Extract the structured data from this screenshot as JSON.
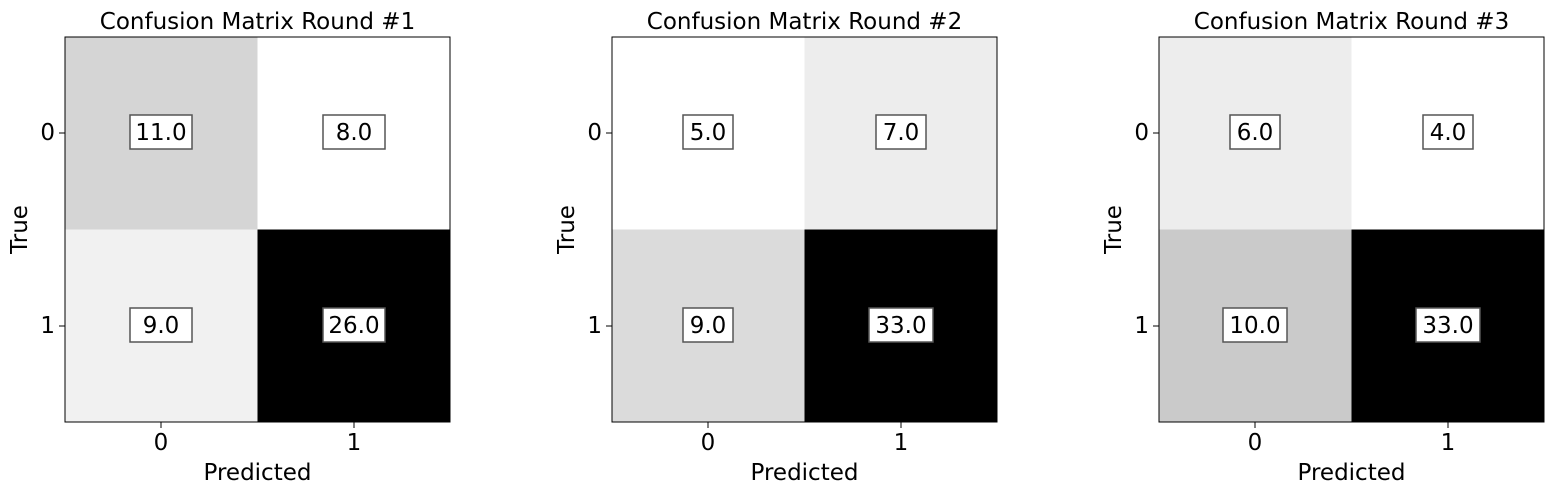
{
  "chart_data": [
    {
      "type": "heatmap",
      "title": "Confusion Matrix Round #1",
      "xlabel": "Predicted",
      "ylabel": "True",
      "x_categories": [
        "0",
        "1"
      ],
      "y_categories": [
        "0",
        "1"
      ],
      "values": [
        [
          "11.0",
          "8.0"
        ],
        [
          "9.0",
          "26.0"
        ]
      ],
      "colormap": "grayscale (low = white, high = black)"
    },
    {
      "type": "heatmap",
      "title": "Confusion Matrix Round #2",
      "xlabel": "Predicted",
      "ylabel": "True",
      "x_categories": [
        "0",
        "1"
      ],
      "y_categories": [
        "0",
        "1"
      ],
      "values": [
        [
          "5.0",
          "7.0"
        ],
        [
          "9.0",
          "33.0"
        ]
      ],
      "colormap": "grayscale (low = white, high = black)"
    },
    {
      "type": "heatmap",
      "title": "Confusion Matrix Round #3",
      "xlabel": "Predicted",
      "ylabel": "True",
      "x_categories": [
        "0",
        "1"
      ],
      "y_categories": [
        "0",
        "1"
      ],
      "values": [
        [
          "6.0",
          "4.0"
        ],
        [
          "10.0",
          "33.0"
        ]
      ],
      "colormap": "grayscale (low = white, high = black)"
    }
  ]
}
